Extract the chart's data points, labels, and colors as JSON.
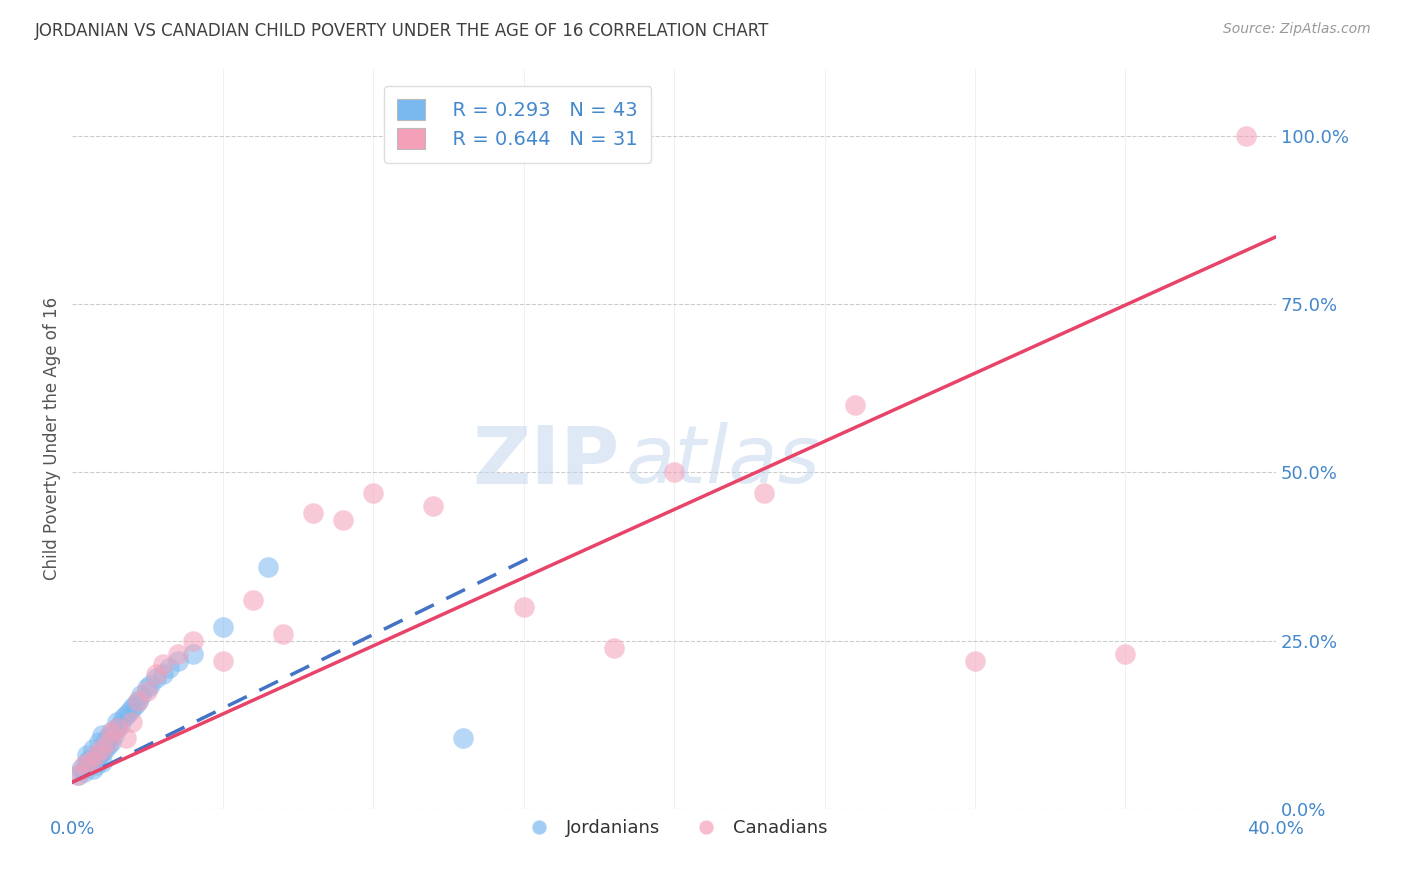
{
  "title": "JORDANIAN VS CANADIAN CHILD POVERTY UNDER THE AGE OF 16 CORRELATION CHART",
  "source_text": "Source: ZipAtlas.com",
  "ylabel": "Child Poverty Under the Age of 16",
  "xlim": [
    0.0,
    0.4
  ],
  "ylim": [
    0.0,
    1.1
  ],
  "xticks": [
    0.0,
    0.05,
    0.1,
    0.15,
    0.2,
    0.25,
    0.3,
    0.35,
    0.4
  ],
  "xticklabels": [
    "0.0%",
    "",
    "",
    "",
    "",
    "",
    "",
    "",
    "40.0%"
  ],
  "yticks_right": [
    0.0,
    0.25,
    0.5,
    0.75,
    1.0
  ],
  "yticklabels_right": [
    "0.0%",
    "25.0%",
    "50.0%",
    "75.0%",
    "100.0%"
  ],
  "watermark_zip": "ZIP",
  "watermark_atlas": "atlas",
  "legend_r1": "R = 0.293",
  "legend_n1": "N = 43",
  "legend_r2": "R = 0.644",
  "legend_n2": "N = 31",
  "blue_color": "#7ab8f0",
  "pink_color": "#f4a0b8",
  "blue_line_color": "#4472c4",
  "pink_line_color": "#e8446a",
  "title_color": "#404040",
  "axis_label_color": "#555555",
  "tick_label_color": "#4488cc",
  "grid_color": "#cccccc",
  "background_color": "#ffffff",
  "jordanians_x": [
    0.002,
    0.003,
    0.004,
    0.005,
    0.005,
    0.006,
    0.006,
    0.007,
    0.007,
    0.008,
    0.008,
    0.009,
    0.009,
    0.01,
    0.01,
    0.01,
    0.011,
    0.011,
    0.012,
    0.012,
    0.013,
    0.013,
    0.014,
    0.015,
    0.015,
    0.016,
    0.017,
    0.018,
    0.019,
    0.02,
    0.021,
    0.022,
    0.023,
    0.025,
    0.026,
    0.028,
    0.03,
    0.032,
    0.035,
    0.04,
    0.05,
    0.065,
    0.13
  ],
  "jordanians_y": [
    0.05,
    0.06,
    0.055,
    0.07,
    0.08,
    0.065,
    0.075,
    0.06,
    0.09,
    0.065,
    0.075,
    0.08,
    0.1,
    0.07,
    0.085,
    0.11,
    0.09,
    0.1,
    0.095,
    0.105,
    0.1,
    0.115,
    0.11,
    0.12,
    0.13,
    0.125,
    0.135,
    0.14,
    0.145,
    0.15,
    0.155,
    0.16,
    0.17,
    0.18,
    0.185,
    0.195,
    0.2,
    0.21,
    0.22,
    0.23,
    0.27,
    0.36,
    0.105
  ],
  "canadians_x": [
    0.002,
    0.004,
    0.006,
    0.008,
    0.01,
    0.012,
    0.013,
    0.015,
    0.018,
    0.02,
    0.022,
    0.025,
    0.028,
    0.03,
    0.035,
    0.04,
    0.05,
    0.06,
    0.07,
    0.08,
    0.09,
    0.1,
    0.12,
    0.15,
    0.18,
    0.2,
    0.23,
    0.26,
    0.3,
    0.35,
    0.39
  ],
  "canadians_y": [
    0.05,
    0.065,
    0.07,
    0.08,
    0.09,
    0.1,
    0.115,
    0.12,
    0.105,
    0.13,
    0.16,
    0.175,
    0.2,
    0.215,
    0.23,
    0.25,
    0.22,
    0.31,
    0.26,
    0.44,
    0.43,
    0.47,
    0.45,
    0.3,
    0.24,
    0.5,
    0.47,
    0.6,
    0.22,
    0.23,
    1.0
  ],
  "blue_line_x": [
    0.0,
    0.155
  ],
  "blue_line_y": [
    0.04,
    0.38
  ],
  "pink_line_x": [
    0.0,
    0.4
  ],
  "pink_line_y": [
    0.04,
    0.85
  ]
}
